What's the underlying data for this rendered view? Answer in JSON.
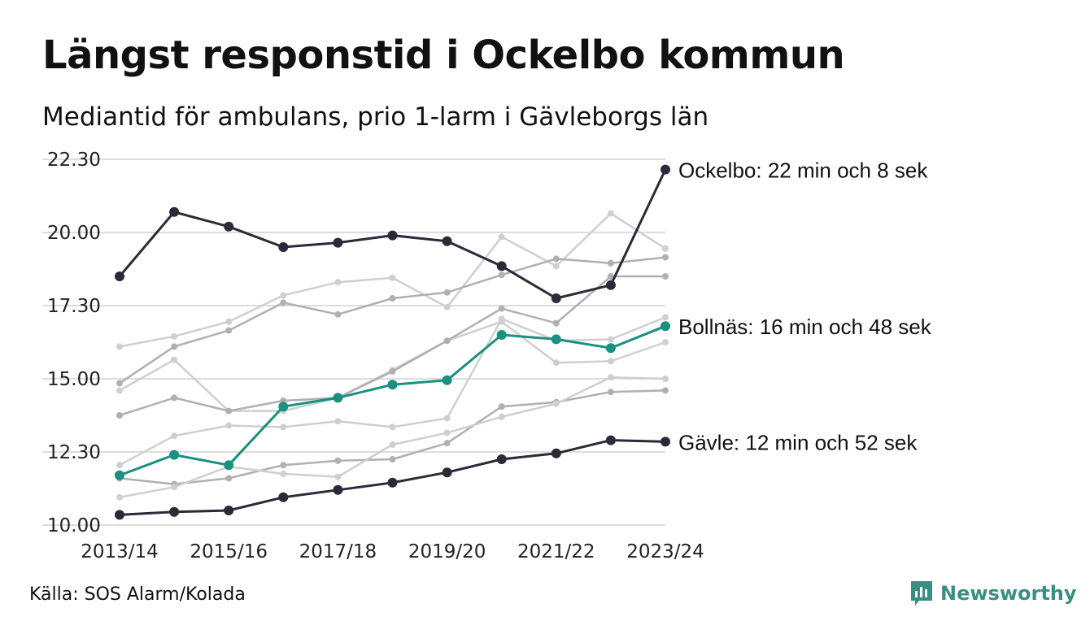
{
  "title": "Längst responstid i Ockelbo kommun",
  "subtitle": "Mediantid för ambulans, prio 1-larm i Gävleborgs län",
  "source": "Källa: SOS Alarm/Kolada",
  "brand": "Newsworthy",
  "colors": {
    "highlight_dark": "#2a2a38",
    "highlight_teal": "#1a9080",
    "context_grey": "#b0b0b0",
    "context_light": "#cfcfcf",
    "grid": "#dddddd",
    "brand": "#3a8f83"
  },
  "chart_data": {
    "type": "line",
    "y_tick_labels": [
      "10.00",
      "12.30",
      "15.00",
      "17.30",
      "20.00",
      "22.30"
    ],
    "y_tick_values": [
      10,
      12.5,
      15,
      17.5,
      20,
      22.5
    ],
    "ylim": [
      10,
      22.5
    ],
    "x_tick_labels": [
      "2013/14",
      "2015/16",
      "2017/18",
      "2019/20",
      "2021/22",
      "2023/24"
    ],
    "x": [
      "2013/14",
      "2014/15",
      "2015/16",
      "2016/17",
      "2017/18",
      "2018/19",
      "2019/20",
      "2020/21",
      "2021/22",
      "2022/23",
      "2023/24"
    ],
    "grid": true,
    "highlighted": [
      {
        "name": "Ockelbo",
        "label": "Ockelbo: 22 min och 8 sek",
        "color": "#2a2a38",
        "values": [
          18.5,
          20.7,
          20.2,
          19.5,
          19.65,
          19.9,
          19.7,
          18.85,
          17.75,
          18.2,
          22.15
        ]
      },
      {
        "name": "Bollnäs",
        "label": "Bollnäs: 16 min och 48 sek",
        "color": "#1a9080",
        "values": [
          11.7,
          12.4,
          12.05,
          14.05,
          14.35,
          14.8,
          14.95,
          16.5,
          16.35,
          16.05,
          16.8
        ]
      },
      {
        "name": "Gävle",
        "label": "Gävle: 12 min och 52 sek",
        "color": "#2a2a38",
        "values": [
          10.35,
          10.45,
          10.5,
          10.95,
          11.2,
          11.45,
          11.8,
          12.25,
          12.45,
          12.9,
          12.85
        ]
      }
    ],
    "context_series": [
      {
        "values": [
          16.1,
          16.45,
          16.95,
          17.85,
          18.3,
          18.45,
          17.45,
          19.85,
          18.85,
          20.65,
          19.45
        ]
      },
      {
        "values": [
          14.85,
          16.1,
          16.65,
          17.6,
          17.2,
          17.75,
          17.95,
          18.55,
          19.1,
          18.95,
          19.15
        ]
      },
      {
        "values": [
          14.6,
          15.65,
          13.9,
          13.9,
          14.35,
          15.3,
          16.3,
          16.95,
          15.55,
          15.6,
          16.25
        ]
      },
      {
        "values": [
          13.75,
          14.35,
          13.9,
          14.25,
          14.35,
          15.25,
          16.3,
          17.4,
          16.9,
          18.5,
          18.5
        ]
      },
      {
        "values": [
          12.05,
          13.05,
          13.4,
          13.35,
          13.55,
          13.35,
          13.65,
          17.05,
          16.3,
          16.35,
          17.1
        ]
      },
      {
        "values": [
          11.6,
          11.4,
          11.6,
          12.05,
          12.2,
          12.25,
          12.8,
          14.05,
          14.2,
          14.55,
          14.6
        ]
      },
      {
        "values": [
          10.95,
          11.3,
          12.0,
          11.75,
          11.65,
          12.75,
          13.15,
          13.7,
          14.15,
          15.05,
          15.0
        ]
      }
    ]
  }
}
